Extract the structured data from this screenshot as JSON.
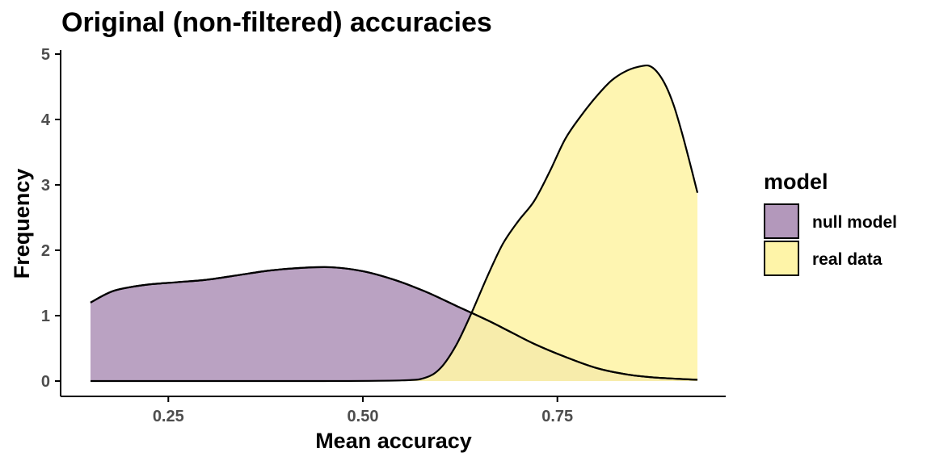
{
  "chart_data": {
    "type": "area",
    "title": "Original (non-filtered) accuracies",
    "xlabel": "Mean accuracy",
    "ylabel": "Frequency",
    "xlim": [
      0.15,
      0.93
    ],
    "ylim": [
      0,
      5
    ],
    "xticks": [
      0.25,
      0.5,
      0.75
    ],
    "xtick_labels": [
      "0.25",
      "0.50",
      "0.75"
    ],
    "yticks": [
      0,
      1,
      2,
      3,
      4,
      5
    ],
    "ytick_labels": [
      "0",
      "1",
      "2",
      "3",
      "4",
      "5"
    ],
    "grid": false,
    "legend": {
      "title": "model",
      "placement": "right"
    },
    "series": [
      {
        "name": "null model",
        "color": "#b398bb",
        "x": [
          0.15,
          0.18,
          0.22,
          0.26,
          0.3,
          0.34,
          0.38,
          0.42,
          0.46,
          0.5,
          0.54,
          0.58,
          0.62,
          0.66,
          0.69,
          0.72,
          0.76,
          0.8,
          0.84,
          0.88,
          0.93
        ],
        "y": [
          1.2,
          1.38,
          1.47,
          1.51,
          1.55,
          1.62,
          1.69,
          1.73,
          1.74,
          1.68,
          1.55,
          1.37,
          1.15,
          0.93,
          0.75,
          0.57,
          0.37,
          0.2,
          0.1,
          0.05,
          0.02
        ]
      },
      {
        "name": "real data",
        "color": "#fef4a8",
        "x": [
          0.15,
          0.3,
          0.45,
          0.55,
          0.58,
          0.6,
          0.62,
          0.64,
          0.66,
          0.68,
          0.7,
          0.72,
          0.74,
          0.76,
          0.78,
          0.8,
          0.82,
          0.84,
          0.86,
          0.87,
          0.88,
          0.89,
          0.9,
          0.91,
          0.92,
          0.93
        ],
        "y": [
          0.0,
          0.0,
          0.0,
          0.01,
          0.05,
          0.2,
          0.55,
          1.05,
          1.6,
          2.1,
          2.45,
          2.75,
          3.2,
          3.7,
          4.05,
          4.35,
          4.6,
          4.75,
          4.82,
          4.81,
          4.7,
          4.5,
          4.2,
          3.8,
          3.35,
          2.88
        ]
      }
    ]
  }
}
